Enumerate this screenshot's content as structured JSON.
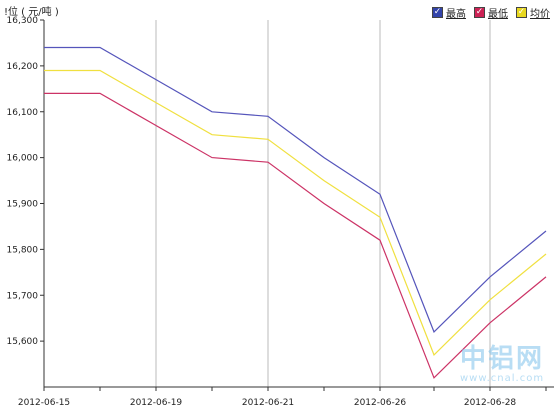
{
  "chart_data": {
    "type": "line",
    "unit_label": "!位 ( 元/吨 )",
    "x": [
      "2012-06-15",
      "2012-06-18",
      "2012-06-19",
      "2012-06-20",
      "2012-06-21",
      "2012-06-25",
      "2012-06-26",
      "2012-06-27",
      "2012-06-28",
      "2012-06-29"
    ],
    "x_tick_labels": [
      "2012-06-15",
      "2012-06-19",
      "2012-06-21",
      "2012-06-26",
      "2012-06-28"
    ],
    "ylim": [
      15500,
      16300
    ],
    "y_ticks": [
      15600,
      15700,
      15800,
      15900,
      16000,
      16100,
      16200,
      16300
    ],
    "y_tick_labels": [
      "15,600",
      "15,700",
      "15,800",
      "15,900",
      "16,000",
      "16,100",
      "16,200",
      "16,300"
    ],
    "grid": {
      "vertical": true,
      "horizontal": false
    },
    "legend_placement": "top-right",
    "series": [
      {
        "name": "最高",
        "color": "#5555bb",
        "values": [
          16240,
          16240,
          16170,
          16100,
          16090,
          16000,
          15920,
          15620,
          15740,
          15840
        ]
      },
      {
        "name": "最低",
        "color": "#cc3366",
        "values": [
          16140,
          16140,
          16070,
          16000,
          15990,
          15900,
          15820,
          15520,
          15640,
          15740
        ]
      },
      {
        "name": "均价",
        "color": "#f0e040",
        "values": [
          16190,
          16190,
          16120,
          16050,
          16040,
          15950,
          15870,
          15570,
          15690,
          15790
        ]
      }
    ]
  },
  "watermark": {
    "main": "中铝网",
    "sub": "www.cnal.com"
  }
}
